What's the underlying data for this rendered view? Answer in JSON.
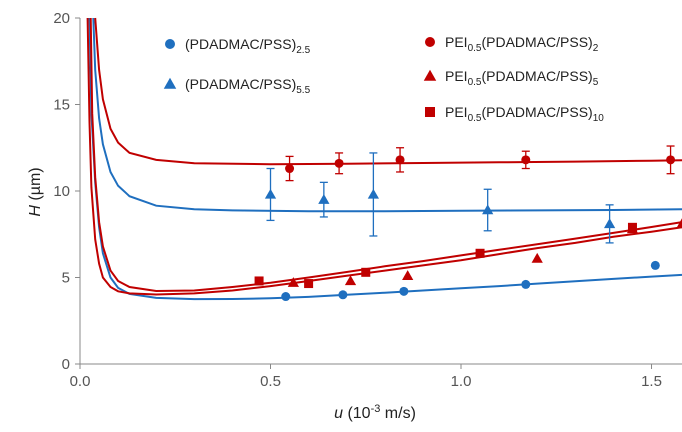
{
  "chart_data": {
    "type": "scatter",
    "xlabel": {
      "var": "u",
      "rest": " (10",
      "sup": "-3",
      "unit": " m/s)"
    },
    "ylabel": {
      "var": "H",
      "rest": " (µm)"
    },
    "xlim": [
      0,
      1.58
    ],
    "ylim": [
      0,
      20
    ],
    "xticks": [
      0.0,
      0.5,
      1.0,
      1.5
    ],
    "xtick_labels": [
      "0.0",
      "0.5",
      "1.0",
      "1.5"
    ],
    "yticks": [
      0,
      5,
      10,
      15,
      20
    ],
    "ytick_labels": [
      "0",
      "5",
      "10",
      "15",
      "20"
    ],
    "grid": false,
    "colors": {
      "blue": "#1f6fbf",
      "red": "#c00000"
    },
    "series": [
      {
        "legend_main": "(PDADMAC/PSS)",
        "legend_sub": "2.5",
        "legend_after": "",
        "marker": "circle",
        "color": "#1f6fbf",
        "points": [
          [
            0.54,
            3.9
          ],
          [
            0.69,
            4.0
          ],
          [
            0.85,
            4.2
          ],
          [
            1.17,
            4.6
          ],
          [
            1.51,
            5.7
          ]
        ],
        "errors": [
          0,
          0,
          0,
          0,
          0
        ],
        "fit": [
          [
            0.025,
            20
          ],
          [
            0.03,
            14.5
          ],
          [
            0.04,
            10.5
          ],
          [
            0.05,
            7.9
          ],
          [
            0.06,
            6.4
          ],
          [
            0.08,
            5.0
          ],
          [
            0.1,
            4.4
          ],
          [
            0.13,
            4.05
          ],
          [
            0.2,
            3.82
          ],
          [
            0.3,
            3.75
          ],
          [
            0.4,
            3.76
          ],
          [
            0.5,
            3.8
          ],
          [
            0.6,
            3.88
          ],
          [
            0.7,
            4.0
          ],
          [
            0.8,
            4.12
          ],
          [
            0.9,
            4.25
          ],
          [
            1.0,
            4.38
          ],
          [
            1.1,
            4.5
          ],
          [
            1.2,
            4.65
          ],
          [
            1.3,
            4.78
          ],
          [
            1.4,
            4.92
          ],
          [
            1.5,
            5.05
          ],
          [
            1.58,
            5.15
          ]
        ]
      },
      {
        "legend_main": "(PDADMAC/PSS)",
        "legend_sub": "5.5",
        "legend_after": "",
        "marker": "triangle",
        "color": "#1f6fbf",
        "points": [
          [
            0.5,
            9.8
          ],
          [
            0.64,
            9.5
          ],
          [
            0.77,
            9.8
          ],
          [
            1.07,
            8.9
          ],
          [
            1.39,
            8.1
          ]
        ],
        "errors": [
          1.5,
          1.0,
          2.4,
          1.2,
          1.1
        ],
        "fit": [
          [
            0.035,
            20
          ],
          [
            0.04,
            17.0
          ],
          [
            0.05,
            14.2
          ],
          [
            0.06,
            12.7
          ],
          [
            0.08,
            11.1
          ],
          [
            0.1,
            10.3
          ],
          [
            0.13,
            9.7
          ],
          [
            0.2,
            9.15
          ],
          [
            0.3,
            8.95
          ],
          [
            0.4,
            8.88
          ],
          [
            0.6,
            8.83
          ],
          [
            0.8,
            8.83
          ],
          [
            1.0,
            8.86
          ],
          [
            1.2,
            8.88
          ],
          [
            1.4,
            8.9
          ],
          [
            1.58,
            8.95
          ]
        ]
      },
      {
        "legend_main": "PEI",
        "legend_sub": "0.5",
        "legend_after": "(PDADMAC/PSS)",
        "legend_sub2": "2",
        "marker": "circle",
        "color": "#c00000",
        "points": [
          [
            0.55,
            11.3
          ],
          [
            0.68,
            11.6
          ],
          [
            0.84,
            11.8
          ],
          [
            1.17,
            11.8
          ],
          [
            1.55,
            11.8
          ]
        ],
        "errors": [
          0.7,
          0.6,
          0.7,
          0.5,
          0.8
        ],
        "fit": [
          [
            0.04,
            20
          ],
          [
            0.05,
            17.0
          ],
          [
            0.06,
            15.3
          ],
          [
            0.08,
            13.6
          ],
          [
            0.1,
            12.8
          ],
          [
            0.13,
            12.2
          ],
          [
            0.2,
            11.8
          ],
          [
            0.3,
            11.6
          ],
          [
            0.5,
            11.55
          ],
          [
            0.7,
            11.58
          ],
          [
            0.9,
            11.62
          ],
          [
            1.1,
            11.66
          ],
          [
            1.3,
            11.7
          ],
          [
            1.5,
            11.75
          ],
          [
            1.58,
            11.78
          ]
        ]
      },
      {
        "legend_main": "PEI",
        "legend_sub": "0.5",
        "legend_after": "(PDADMAC/PSS)",
        "legend_sub2": "5",
        "marker": "triangle",
        "color": "#c00000",
        "points": [
          [
            0.56,
            4.7
          ],
          [
            0.71,
            4.8
          ],
          [
            0.86,
            5.1
          ],
          [
            1.2,
            6.1
          ],
          [
            1.45,
            7.8
          ],
          [
            1.58,
            8.1
          ]
        ],
        "errors": [
          0,
          0,
          0,
          0,
          0,
          0
        ],
        "fit": [
          [
            0.02,
            20
          ],
          [
            0.025,
            14.0
          ],
          [
            0.03,
            10.2
          ],
          [
            0.04,
            7.2
          ],
          [
            0.05,
            5.8
          ],
          [
            0.06,
            5.0
          ],
          [
            0.08,
            4.45
          ],
          [
            0.1,
            4.2
          ],
          [
            0.13,
            4.08
          ],
          [
            0.2,
            4.02
          ],
          [
            0.3,
            4.08
          ],
          [
            0.4,
            4.25
          ],
          [
            0.5,
            4.5
          ],
          [
            0.6,
            4.8
          ],
          [
            0.7,
            5.1
          ],
          [
            0.8,
            5.4
          ],
          [
            0.9,
            5.7
          ],
          [
            1.0,
            6.0
          ],
          [
            1.1,
            6.35
          ],
          [
            1.2,
            6.7
          ],
          [
            1.3,
            7.0
          ],
          [
            1.4,
            7.35
          ],
          [
            1.5,
            7.65
          ],
          [
            1.58,
            7.9
          ]
        ]
      },
      {
        "legend_main": "PEI",
        "legend_sub": "0.5",
        "legend_after": "(PDADMAC/PSS)",
        "legend_sub2": "10",
        "marker": "square",
        "color": "#c00000",
        "points": [
          [
            0.47,
            4.8
          ],
          [
            0.6,
            4.65
          ],
          [
            0.75,
            5.3
          ],
          [
            1.05,
            6.4
          ],
          [
            1.45,
            7.9
          ]
        ],
        "errors": [
          0,
          0,
          0,
          0,
          0
        ],
        "fit": [
          [
            0.028,
            20
          ],
          [
            0.032,
            14.5
          ],
          [
            0.04,
            10.8
          ],
          [
            0.05,
            8.2
          ],
          [
            0.06,
            6.8
          ],
          [
            0.08,
            5.4
          ],
          [
            0.1,
            4.8
          ],
          [
            0.13,
            4.45
          ],
          [
            0.2,
            4.22
          ],
          [
            0.3,
            4.25
          ],
          [
            0.4,
            4.45
          ],
          [
            0.5,
            4.7
          ],
          [
            0.6,
            5.0
          ],
          [
            0.7,
            5.32
          ],
          [
            0.8,
            5.65
          ],
          [
            0.9,
            5.95
          ],
          [
            1.0,
            6.28
          ],
          [
            1.1,
            6.6
          ],
          [
            1.2,
            6.92
          ],
          [
            1.3,
            7.25
          ],
          [
            1.4,
            7.58
          ],
          [
            1.5,
            7.92
          ],
          [
            1.58,
            8.2
          ]
        ]
      }
    ]
  }
}
